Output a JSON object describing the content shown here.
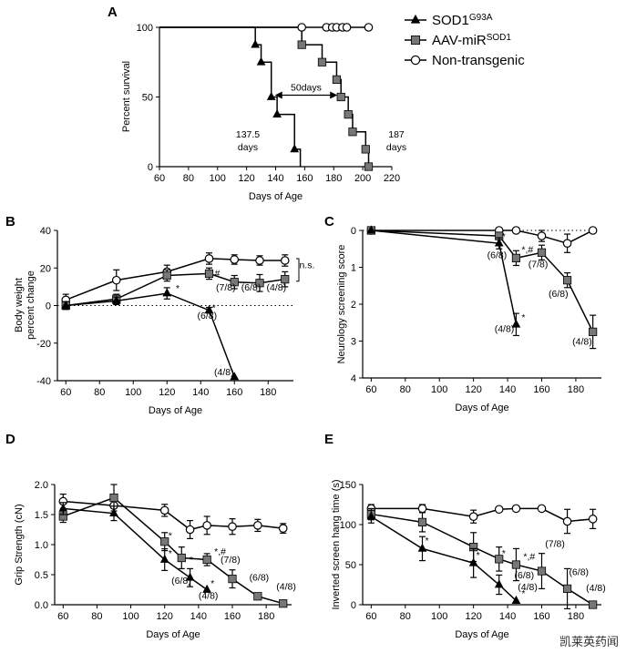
{
  "legend": {
    "items": [
      {
        "label": "SOD1",
        "sup": "G93A",
        "marker": "triangle"
      },
      {
        "label": "AAV-miR",
        "sup": "SOD1",
        "marker": "square"
      },
      {
        "label": "Non-transgenic",
        "marker": "circle"
      }
    ]
  },
  "colors": {
    "tg": "#000000",
    "aav": "#777777",
    "ntg": "#ffffff",
    "line": "#000000"
  },
  "watermark": "凯莱英药闻",
  "chart_data": [
    {
      "panel": "A",
      "type": "line",
      "step": true,
      "xlabel": "Days of Age",
      "ylabel": "Percent survival",
      "xlim": [
        60,
        220
      ],
      "ylim": [
        0,
        100
      ],
      "xticks": [
        60,
        80,
        100,
        120,
        140,
        160,
        180,
        200,
        220
      ],
      "yticks": [
        0,
        50,
        100
      ],
      "series": [
        {
          "name": "SOD1G93A",
          "marker": "triangle",
          "x": [
            60,
            126,
            126,
            130,
            130,
            137,
            137,
            141,
            141,
            153,
            153,
            157,
            157
          ],
          "y": [
            100,
            100,
            87.5,
            87.5,
            75,
            75,
            50,
            50,
            37.5,
            37.5,
            12.5,
            12.5,
            0
          ]
        },
        {
          "name": "AAV-miRSOD1",
          "marker": "square",
          "x": [
            60,
            158,
            158,
            172,
            172,
            182,
            182,
            185,
            185,
            190,
            190,
            193,
            193,
            202,
            202,
            204,
            204
          ],
          "y": [
            100,
            100,
            87.5,
            87.5,
            75,
            75,
            62.5,
            62.5,
            50,
            50,
            37.5,
            37.5,
            25,
            25,
            12.5,
            12.5,
            0
          ]
        },
        {
          "name": "Non-transgenic",
          "marker": "circle",
          "x": [
            60,
            204
          ],
          "y": [
            100,
            100
          ]
        }
      ],
      "markers": {
        "SOD1G93A": [
          [
            126,
            87.5
          ],
          [
            130,
            75
          ],
          [
            137,
            50
          ],
          [
            141,
            37.5
          ],
          [
            153,
            12.5
          ]
        ],
        "AAV-miRSOD1": [
          [
            158,
            87.5
          ],
          [
            172,
            75
          ],
          [
            182,
            62.5
          ],
          [
            185,
            50
          ],
          [
            190,
            37.5
          ],
          [
            193,
            25
          ],
          [
            202,
            12.5
          ],
          [
            204,
            0
          ]
        ],
        "Non-transgenic": [
          [
            158,
            100
          ],
          [
            175,
            100
          ],
          [
            179,
            100
          ],
          [
            182,
            100
          ],
          [
            186,
            100
          ],
          [
            189,
            100
          ],
          [
            204,
            100
          ]
        ]
      },
      "annotations": {
        "mid": "50days",
        "left": "137.5\ndays",
        "right": "187\ndays"
      }
    },
    {
      "panel": "B",
      "type": "line",
      "xlabel": "Days of Age",
      "ylabel": "Body weight\npercent change",
      "xlim": [
        55,
        195
      ],
      "ylim": [
        -40,
        40
      ],
      "xticks": [
        60,
        80,
        100,
        120,
        140,
        160,
        180
      ],
      "yticks": [
        -40,
        -20,
        0,
        20,
        40
      ],
      "series": [
        {
          "name": "SOD1G93A",
          "x": [
            60,
            90,
            120,
            145,
            160
          ],
          "y": [
            0,
            2.5,
            6.5,
            -2.5,
            -38
          ],
          "err": [
            2,
            2,
            3,
            1.5,
            0
          ]
        },
        {
          "name": "AAV-miRSOD1",
          "x": [
            60,
            90,
            120,
            145,
            160,
            175,
            190
          ],
          "y": [
            0,
            3.5,
            16,
            17,
            12.5,
            12,
            14
          ],
          "err": [
            2,
            2.5,
            3,
            3,
            3.5,
            4.5,
            4
          ]
        },
        {
          "name": "Non-transgenic",
          "x": [
            60,
            90,
            120,
            145,
            160,
            175,
            190
          ],
          "y": [
            3,
            13.5,
            18,
            25,
            24.5,
            24,
            24
          ],
          "err": [
            3,
            5.5,
            3.5,
            3,
            2.5,
            2.5,
            3
          ]
        }
      ],
      "annotations": [
        "*",
        "#",
        "*",
        "(7/8)",
        "(6/8)",
        "(4/8)",
        "(6/8)",
        "(4/8)",
        "n.s."
      ]
    },
    {
      "panel": "C",
      "type": "line",
      "xlabel": "Days of Age",
      "ylabel": "Neurology screening score",
      "xlim": [
        55,
        195
      ],
      "ylim": [
        0,
        4
      ],
      "xticks": [
        60,
        80,
        100,
        120,
        140,
        160,
        180
      ],
      "yticks": [
        0,
        1,
        2,
        3,
        4
      ],
      "series": [
        {
          "name": "SOD1G93A",
          "x": [
            60,
            135,
            145
          ],
          "y": [
            0,
            0.35,
            2.55
          ],
          "err": [
            0,
            0.15,
            0.3
          ]
        },
        {
          "name": "AAV-miRSOD1",
          "x": [
            60,
            135,
            145,
            160,
            175,
            190
          ],
          "y": [
            0,
            0.15,
            0.75,
            0.6,
            1.35,
            2.75
          ],
          "err": [
            0,
            0.1,
            0.2,
            0.2,
            0.2,
            0.45
          ]
        },
        {
          "name": "Non-transgenic",
          "x": [
            60,
            135,
            145,
            160,
            175,
            190
          ],
          "y": [
            0,
            0,
            0,
            0.15,
            0.35,
            0
          ],
          "err": [
            0,
            0,
            0,
            0.15,
            0.25,
            0
          ]
        }
      ],
      "annotations": [
        "*",
        "*,#",
        "*",
        "(6/8)",
        "(7/8)",
        "(6/8)",
        "(4/8)",
        "(4/8)"
      ]
    },
    {
      "panel": "D",
      "type": "line",
      "xlabel": "Days of Age",
      "ylabel": "Grip Strength (cN)",
      "xlim": [
        55,
        195
      ],
      "ylim": [
        0,
        2
      ],
      "xticks": [
        60,
        80,
        100,
        120,
        140,
        160,
        180
      ],
      "yticks": [
        0.0,
        0.5,
        1.0,
        1.5,
        2.0
      ],
      "series": [
        {
          "name": "SOD1G93A",
          "x": [
            60,
            90,
            120,
            135,
            145
          ],
          "y": [
            1.6,
            1.52,
            0.75,
            0.45,
            0.25
          ],
          "err": [
            0.1,
            0.12,
            0.18,
            0.15,
            0
          ]
        },
        {
          "name": "AAV-miRSOD1",
          "x": [
            60,
            90,
            120,
            130,
            145,
            160,
            175,
            190
          ],
          "y": [
            1.47,
            1.78,
            1.05,
            0.78,
            0.75,
            0.43,
            0.14,
            0.02
          ],
          "err": [
            0.1,
            0.22,
            0.15,
            0.18,
            0.1,
            0.15,
            0.05,
            0
          ]
        },
        {
          "name": "Non-transgenic",
          "x": [
            60,
            90,
            120,
            135,
            145,
            160,
            175,
            190
          ],
          "y": [
            1.72,
            1.65,
            1.57,
            1.25,
            1.32,
            1.3,
            1.32,
            1.27
          ],
          "err": [
            0.12,
            0.15,
            0.1,
            0.15,
            0.15,
            0.13,
            0.1,
            0.08
          ]
        }
      ],
      "annotations": [
        "*",
        "*",
        "*",
        "*,#",
        "*",
        "(6/8)",
        "(7/8)",
        "(6/8)",
        "(4/8)",
        "(4/8)"
      ]
    },
    {
      "panel": "E",
      "type": "line",
      "xlabel": "Days of Age",
      "ylabel": "Inverted screen hang time (s)",
      "xlim": [
        55,
        195
      ],
      "ylim": [
        0,
        150
      ],
      "xticks": [
        60,
        80,
        100,
        120,
        140,
        160,
        180
      ],
      "yticks": [
        0,
        50,
        100,
        150
      ],
      "series": [
        {
          "name": "SOD1G93A",
          "x": [
            60,
            90,
            120,
            135,
            145
          ],
          "y": [
            110,
            70,
            52,
            25,
            5
          ],
          "err": [
            8,
            15,
            18,
            12,
            0
          ]
        },
        {
          "name": "AAV-miRSOD1",
          "x": [
            60,
            90,
            120,
            135,
            145,
            160,
            175,
            190
          ],
          "y": [
            113,
            103,
            72,
            57,
            50,
            42,
            20,
            0
          ],
          "err": [
            7,
            12,
            18,
            15,
            20,
            22,
            25,
            0
          ]
        },
        {
          "name": "Non-transgenic",
          "x": [
            60,
            90,
            120,
            135,
            145,
            160,
            175,
            190
          ],
          "y": [
            120,
            120,
            110,
            119,
            120,
            120,
            104,
            107
          ],
          "err": [
            5,
            5,
            8,
            3,
            3,
            3,
            15,
            12
          ]
        }
      ],
      "annotations": [
        "*",
        "*",
        "*",
        "*,#",
        "*",
        "(6/8)",
        "(7/8)",
        "(4/8)",
        "(6/8)",
        "(4/8)"
      ]
    }
  ]
}
